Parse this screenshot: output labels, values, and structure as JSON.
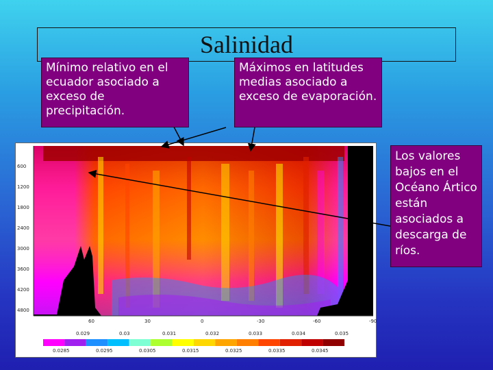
{
  "title": "Salinidad",
  "callouts": {
    "equator": "Mínimo relativo en el ecuador asociado a exceso de precipitación.",
    "midlatitudes": "Máximos en latitudes medias asociado a exceso de evaporación.",
    "arctic": "Los valores bajos en el Océano Ártico están asociados a descarga de ríos."
  },
  "plot": {
    "y_ticks": [
      "600",
      "1200",
      "1800",
      "2400",
      "3000",
      "3600",
      "4200",
      "4800"
    ],
    "x_ticks": [
      "60",
      "30",
      "0",
      "-30",
      "-60",
      "-90"
    ],
    "colorbar_top": [
      "0.029",
      "0.03",
      "0.031",
      "0.032",
      "0.033",
      "0.034",
      "0.035"
    ],
    "colorbar_bottom": [
      "0.0285",
      "0.0295",
      "0.0305",
      "0.0315",
      "0.0325",
      "0.0335",
      "0.0345"
    ],
    "colorbar_colors": [
      "#ff00ff",
      "#a020f0",
      "#1e90ff",
      "#00bfff",
      "#7fffd4",
      "#adff2f",
      "#ffff00",
      "#ffd700",
      "#ffa500",
      "#ff7f00",
      "#ff4500",
      "#e02000",
      "#c00000",
      "#900000"
    ]
  }
}
